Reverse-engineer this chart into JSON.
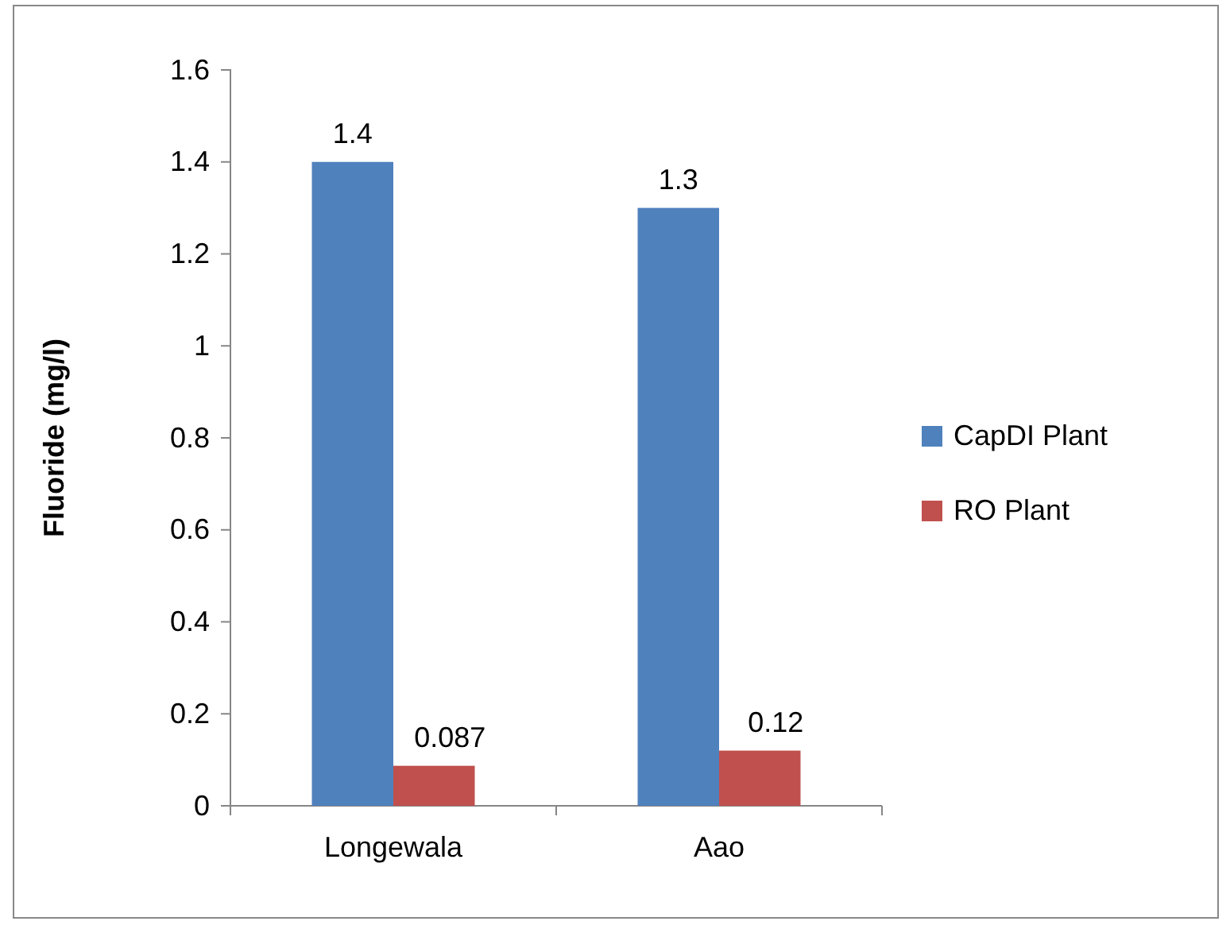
{
  "chart_data": {
    "type": "bar",
    "ylabel": "Fluoride (mg/l)",
    "categories": [
      "Longewala",
      "Aao"
    ],
    "series": [
      {
        "name": "CapDI Plant",
        "color": "#4f81bd",
        "values": [
          1.4,
          1.3
        ]
      },
      {
        "name": "RO Plant",
        "color": "#c0504d",
        "values": [
          0.087,
          0.12
        ]
      }
    ],
    "ylim": [
      0,
      1.6
    ],
    "yticks": [
      0,
      0.2,
      0.4,
      0.6,
      0.8,
      1,
      1.2,
      1.4,
      1.6
    ],
    "grid": false,
    "legend": "right",
    "data_labels": true
  }
}
